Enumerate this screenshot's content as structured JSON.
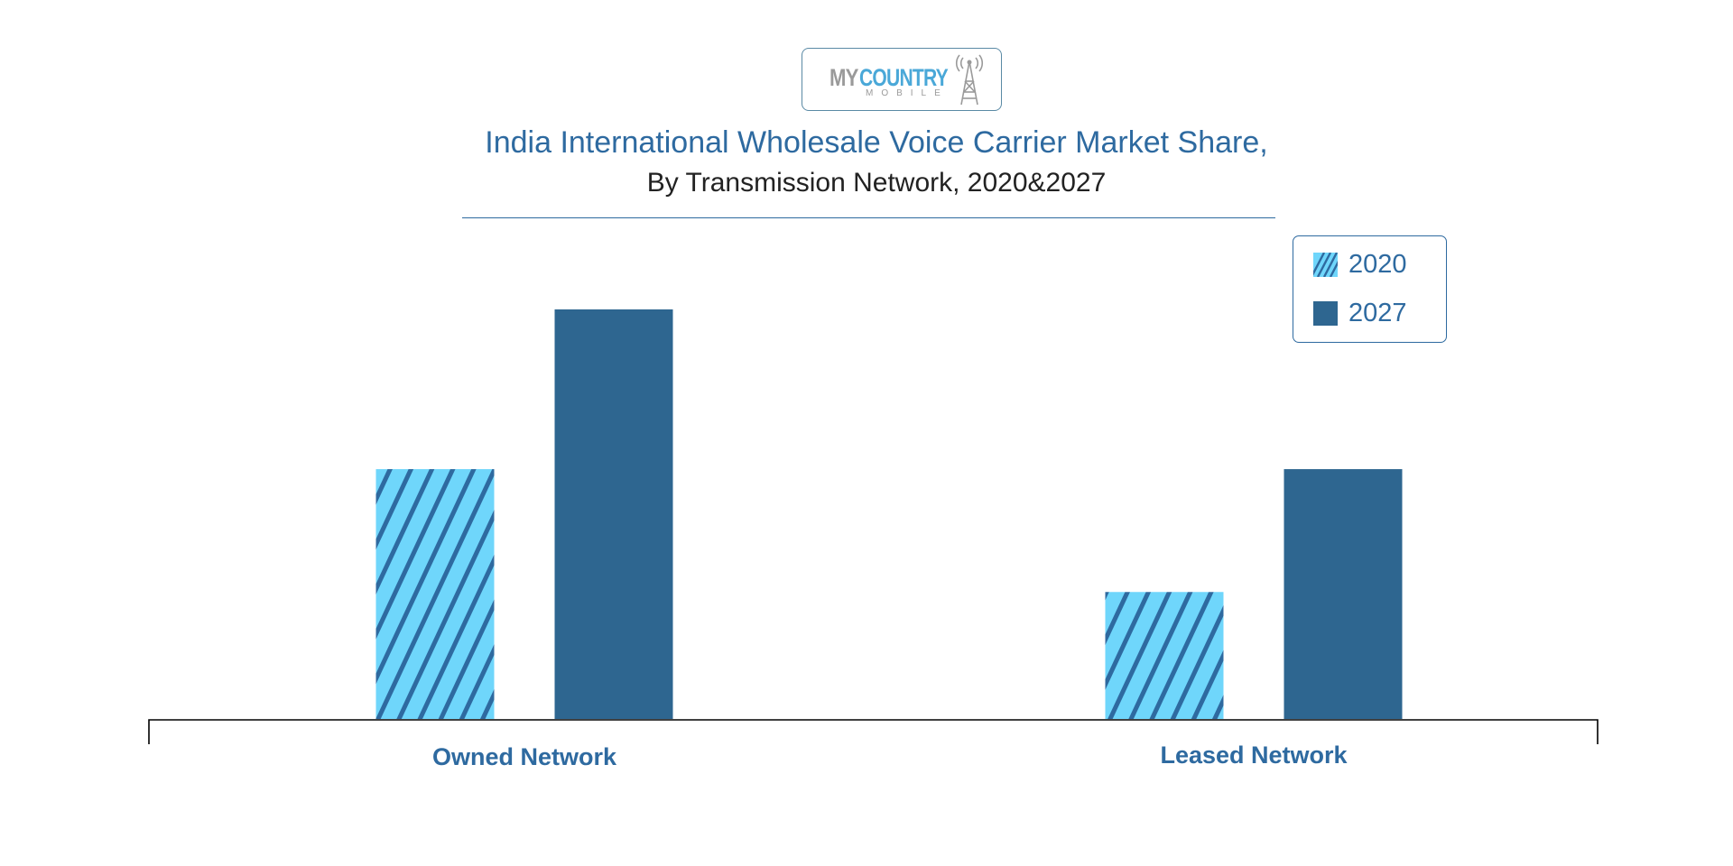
{
  "logo": {
    "word_my": "MY",
    "word_country": "COUNTRY",
    "word_mobile": "MOBILE"
  },
  "chart_data": {
    "type": "bar",
    "title": "India International Wholesale Voice Carrier Market Share,",
    "subtitle": "By Transmission Network, 2020&2027",
    "categories": [
      "Owned Network",
      "Leased Network"
    ],
    "series": [
      {
        "name": "2020",
        "values": [
          61,
          31
        ],
        "color": "#6fd6fb",
        "pattern": "diagonal-hatch",
        "stripe_color": "#2e6aa0"
      },
      {
        "name": "2027",
        "values": [
          100,
          61
        ],
        "color": "#2e6690",
        "pattern": "solid"
      }
    ],
    "ylim": [
      0,
      100
    ],
    "xlabel": "",
    "ylabel": "",
    "axis_labels_shown": false,
    "grid": false,
    "legend_position": "top-right"
  }
}
